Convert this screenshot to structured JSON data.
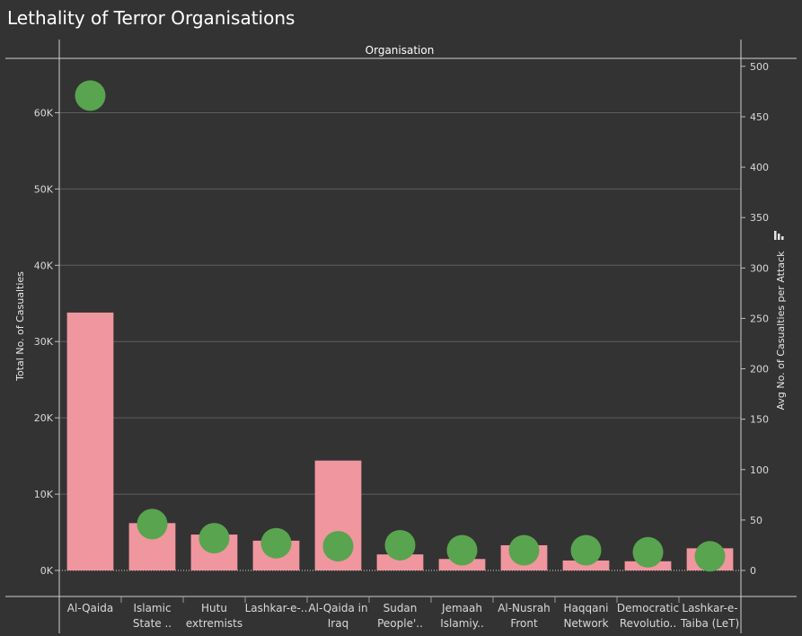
{
  "title": "Lethality of Terror Organisations",
  "chart_data": {
    "type": "bar",
    "header": "Organisation",
    "categories": [
      [
        "Al-Qaida"
      ],
      [
        "Islamic",
        "State .."
      ],
      [
        "Hutu",
        "extremists"
      ],
      [
        "Lashkar-e-.."
      ],
      [
        "Al-Qaida in",
        "Iraq"
      ],
      [
        "Sudan",
        "People'.."
      ],
      [
        "Jemaah",
        "Islamiy.."
      ],
      [
        "Al-Nusrah",
        "Front"
      ],
      [
        "Haqqani",
        "Network"
      ],
      [
        "Democratic",
        "Revolutio.."
      ],
      [
        "Lashkar-e-",
        "Taiba (LeT)"
      ]
    ],
    "series": [
      {
        "measure": "Total No. of Casualties",
        "kind": "bar",
        "axis": "left",
        "color": "#f0969f",
        "values": [
          33800,
          6200,
          4700,
          3900,
          14400,
          2100,
          1500,
          3300,
          1300,
          1200,
          2900
        ]
      },
      {
        "measure": "Avg No. of Casualties per Attack",
        "kind": "circle",
        "axis": "right",
        "color": "#59a44f",
        "values": [
          471,
          46,
          32,
          27,
          24,
          25,
          20,
          20,
          20,
          18,
          14
        ]
      }
    ],
    "left_axis": {
      "label": "Total No. of Casualties",
      "range": [
        0,
        67000
      ],
      "ticks": [
        0,
        10000,
        20000,
        30000,
        40000,
        50000,
        60000
      ],
      "tick_labels": [
        "0K",
        "10K",
        "20K",
        "30K",
        "40K",
        "50K",
        "60K"
      ]
    },
    "right_axis": {
      "label": "Avg No. of Casualties per Attack",
      "range": [
        0,
        507
      ],
      "ticks": [
        0,
        50,
        100,
        150,
        200,
        250,
        300,
        350,
        400,
        450,
        500
      ],
      "tick_labels": [
        "0",
        "50",
        "100",
        "150",
        "200",
        "250",
        "300",
        "350",
        "400",
        "450",
        "500"
      ]
    },
    "grid": true,
    "zero_line": "dotted"
  }
}
